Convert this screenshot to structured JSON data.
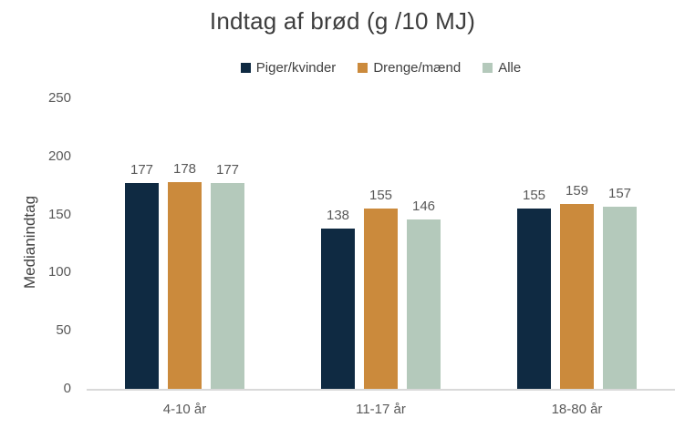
{
  "title": "Indtag af brød (g /10 MJ)",
  "y_axis": {
    "label": "Medianindtag",
    "ticks": [
      0,
      50,
      100,
      150,
      200,
      250
    ]
  },
  "colors": {
    "baseline": "#d9d9d9",
    "title_text": "#3d3d3d",
    "axis_text": "#595959",
    "series_navy": "#0f2a42",
    "series_orange": "#cb8a3c",
    "series_sage": "#b4c9bb"
  },
  "chart_data": {
    "type": "bar",
    "title": "Indtag af brød (g /10 MJ)",
    "categories": [
      "4-10 år",
      "11-17 år",
      "18-80 år"
    ],
    "series": [
      {
        "name": "Piger/kvinder",
        "color": "#0f2a42",
        "values": [
          177,
          138,
          155
        ]
      },
      {
        "name": "Drenge/mænd",
        "color": "#cb8a3c",
        "values": [
          178,
          155,
          159
        ]
      },
      {
        "name": "Alle",
        "color": "#b4c9bb",
        "values": [
          177,
          146,
          157
        ]
      }
    ],
    "xlabel": "",
    "ylabel": "Medianindtag",
    "ylim": [
      0,
      250
    ],
    "grid": false,
    "legend_position": "top",
    "data_labels": true
  }
}
